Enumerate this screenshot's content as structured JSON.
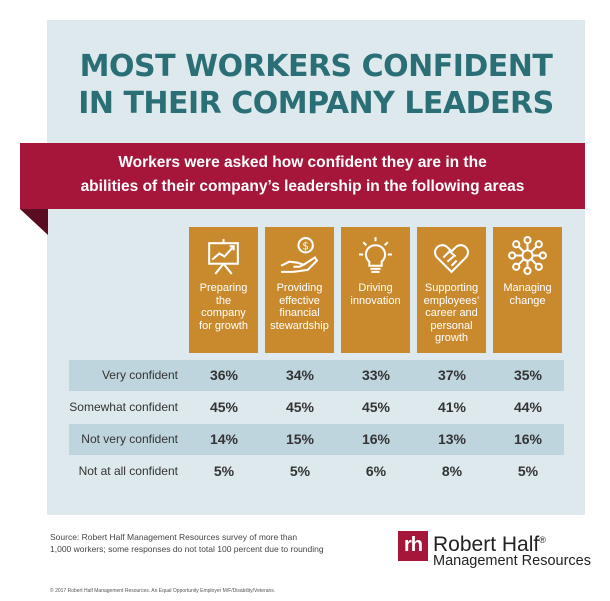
{
  "title": {
    "line1": "MOST WORKERS CONFIDENT",
    "line2": "IN THEIR COMPANY LEADERS"
  },
  "banner": {
    "line1": "Workers were asked how confident they are in the",
    "line2": "abilities of their company’s leadership in the following areas"
  },
  "colors": {
    "title": "#2a6e76",
    "banner": "#a6163a",
    "card": "#c98a2e",
    "panel": "#dde9ed",
    "row_shade": "#bfd5dd"
  },
  "chart_data": {
    "type": "table",
    "categories": [
      {
        "icon": "growth-chart-easel-icon",
        "lines": [
          "Preparing",
          "the",
          "company",
          "for growth"
        ]
      },
      {
        "icon": "hand-coin-icon",
        "lines": [
          "Providing",
          "effective",
          "financial",
          "stewardship"
        ]
      },
      {
        "icon": "lightbulb-icon",
        "lines": [
          "Driving",
          "innovation"
        ]
      },
      {
        "icon": "handshake-heart-icon",
        "lines": [
          "Supporting",
          "employees’",
          "career and",
          "personal",
          "growth"
        ]
      },
      {
        "icon": "network-people-icon",
        "lines": [
          "Managing",
          "change"
        ]
      }
    ],
    "series": [
      {
        "name": "Very confident",
        "values": [
          "36%",
          "34%",
          "33%",
          "37%",
          "35%"
        ]
      },
      {
        "name": "Somewhat confident",
        "values": [
          "45%",
          "45%",
          "45%",
          "41%",
          "44%"
        ]
      },
      {
        "name": "Not very confident",
        "values": [
          "14%",
          "15%",
          "16%",
          "13%",
          "16%"
        ]
      },
      {
        "name": "Not at all confident",
        "values": [
          "5%",
          "5%",
          "6%",
          "8%",
          "5%"
        ]
      }
    ]
  },
  "source": {
    "line1": "Source: Robert Half Management Resources survey of more than",
    "line2": "1,000 workers; some responses do not total 100 percent due to rounding"
  },
  "logo": {
    "mark": "rh",
    "name": "Robert Half",
    "reg": "®",
    "sub": "Management Resources"
  },
  "footer": "© 2017 Robert Half Management Resources. An Equal Opportunity Employer M/F/Disability/Veterans."
}
